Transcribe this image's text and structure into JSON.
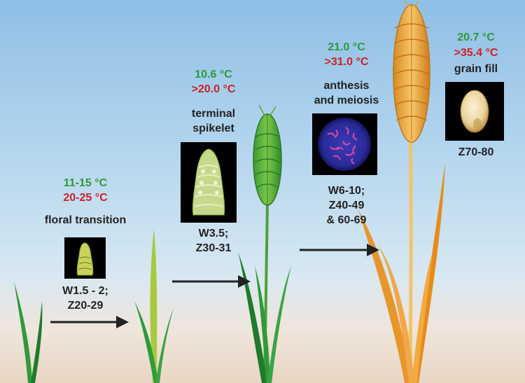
{
  "stages": [
    {
      "optimal_temp": "11-15 °C",
      "max_temp": "20-25 °C",
      "event": [
        "floral transition"
      ],
      "codes": [
        "W1.5 - 2;",
        "Z20-29"
      ],
      "image": "young-spike-photo"
    },
    {
      "optimal_temp": "10.6 °C",
      "max_temp": ">20.0 °C",
      "event": [
        "terminal",
        "spikelet"
      ],
      "codes": [
        "W3.5;",
        "Z30-31"
      ],
      "image": "terminal-spikelet-photo"
    },
    {
      "optimal_temp": "21.0 °C",
      "max_temp": ">31.0 °C",
      "event": [
        "anthesis",
        "and meiosis"
      ],
      "codes": [
        "W6-10;",
        "Z40-49",
        "& 60-69"
      ],
      "image": "meiosis-micrograph"
    },
    {
      "optimal_temp": "20.7 °C",
      "max_temp": ">35.4 °C",
      "event": [
        "grain fill"
      ],
      "codes": [
        "Z70-80"
      ],
      "image": "grain-photo"
    }
  ],
  "colors": {
    "optimal": "#2c9a3e",
    "max": "#cf2027",
    "text": "#222222",
    "leaf_green": "#2f9a3a",
    "mature_gold": "#e8962a"
  }
}
